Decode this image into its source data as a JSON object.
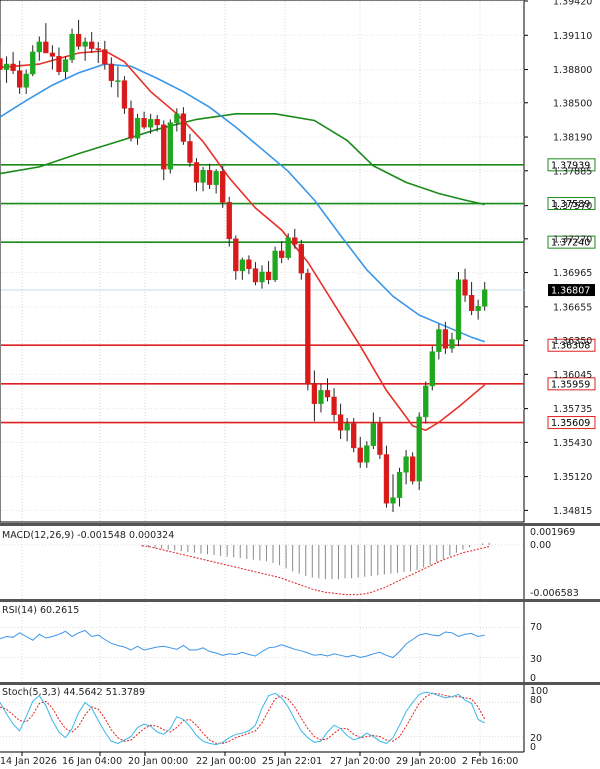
{
  "chart_data": [
    {
      "type": "candlestick",
      "title": "",
      "ylim": [
        1.3471,
        1.3942
      ],
      "y_ticks": [
        "1.39420",
        "1.39110",
        "1.38800",
        "1.38500",
        "1.38190",
        "1.37885",
        "1.37570",
        "1.37270",
        "1.36965",
        "1.36655",
        "1.36350",
        "1.36045",
        "1.35735",
        "1.35430",
        "1.35120",
        "1.34815"
      ],
      "x_ticks": [
        "14 Jan 2026",
        "16 Jan 04:00",
        "20 Jan 00:00",
        "22 Jan 00:00",
        "25 Jan 22:01",
        "27 Jan 20:00",
        "29 Jan 20:00",
        "2 Feb 16:00"
      ],
      "last_price": "1.36807",
      "horizontal_levels": [
        {
          "value": "1.37939",
          "color": "#1a8a1a"
        },
        {
          "value": "1.37589",
          "color": "#1a8a1a"
        },
        {
          "value": "1.37240",
          "color": "#1a8a1a"
        },
        {
          "value": "1.36308",
          "color": "#e02020"
        },
        {
          "value": "1.35959",
          "color": "#e02020"
        },
        {
          "value": "1.35609",
          "color": "#e02020"
        }
      ],
      "colors": {
        "up": "#1fa81f",
        "down": "#d91a1a",
        "ma_fast": "#e8302a",
        "ma_mid": "#3a96e8",
        "ma_slow": "#1a8a1a",
        "last": "#000000"
      },
      "candles": [
        [
          1.389,
          1.3902,
          1.387,
          1.388
        ],
        [
          1.388,
          1.3892,
          1.3868,
          1.3885
        ],
        [
          1.3885,
          1.3896,
          1.3876,
          1.3879
        ],
        [
          1.3879,
          1.3888,
          1.3858,
          1.3864
        ],
        [
          1.3864,
          1.388,
          1.3858,
          1.3876
        ],
        [
          1.3876,
          1.3902,
          1.3874,
          1.3896
        ],
        [
          1.3896,
          1.391,
          1.3888,
          1.3905
        ],
        [
          1.3905,
          1.3922,
          1.3896,
          1.3895
        ],
        [
          1.3895,
          1.3902,
          1.388,
          1.3892
        ],
        [
          1.3892,
          1.39,
          1.3875,
          1.3878
        ],
        [
          1.3878,
          1.3892,
          1.3872,
          1.3889
        ],
        [
          1.3889,
          1.3917,
          1.3886,
          1.3912
        ],
        [
          1.3912,
          1.3925,
          1.3898,
          1.3901
        ],
        [
          1.3901,
          1.3909,
          1.3888,
          1.3905
        ],
        [
          1.3905,
          1.3914,
          1.3895,
          1.3899
        ],
        [
          1.3899,
          1.3905,
          1.3886,
          1.3898
        ],
        [
          1.3898,
          1.3906,
          1.388,
          1.3885
        ],
        [
          1.3885,
          1.3891,
          1.3864,
          1.387
        ],
        [
          1.387,
          1.3883,
          1.3855,
          1.387
        ],
        [
          1.387,
          1.3874,
          1.384,
          1.3845
        ],
        [
          1.3845,
          1.3852,
          1.3815,
          1.3818
        ],
        [
          1.3818,
          1.384,
          1.3812,
          1.3836
        ],
        [
          1.3836,
          1.3842,
          1.3826,
          1.3828
        ],
        [
          1.3828,
          1.384,
          1.3822,
          1.3835
        ],
        [
          1.3835,
          1.3839,
          1.3824,
          1.383
        ],
        [
          1.383,
          1.3834,
          1.378,
          1.379
        ],
        [
          1.379,
          1.3835,
          1.3786,
          1.3832
        ],
        [
          1.3832,
          1.3845,
          1.3824,
          1.384
        ],
        [
          1.384,
          1.3846,
          1.3812,
          1.3815
        ],
        [
          1.3815,
          1.3822,
          1.3792,
          1.3796
        ],
        [
          1.3796,
          1.38,
          1.377,
          1.3778
        ],
        [
          1.3778,
          1.3792,
          1.377,
          1.3789
        ],
        [
          1.3789,
          1.3795,
          1.3772,
          1.3776
        ],
        [
          1.3776,
          1.379,
          1.3768,
          1.3788
        ],
        [
          1.3788,
          1.3793,
          1.3755,
          1.376
        ],
        [
          1.376,
          1.3765,
          1.372,
          1.3727
        ],
        [
          1.3727,
          1.373,
          1.369,
          1.3698
        ],
        [
          1.3698,
          1.371,
          1.369,
          1.3708
        ],
        [
          1.3708,
          1.3712,
          1.3695,
          1.37
        ],
        [
          1.37,
          1.3706,
          1.3685,
          1.3688
        ],
        [
          1.3688,
          1.3703,
          1.3682,
          1.3697
        ],
        [
          1.3697,
          1.3707,
          1.3686,
          1.369
        ],
        [
          1.369,
          1.372,
          1.3688,
          1.3716
        ],
        [
          1.3716,
          1.3725,
          1.3705,
          1.371
        ],
        [
          1.371,
          1.3732,
          1.3708,
          1.3728
        ],
        [
          1.3728,
          1.3736,
          1.3718,
          1.3722
        ],
        [
          1.3722,
          1.3726,
          1.369,
          1.3696
        ],
        [
          1.3696,
          1.37,
          1.359,
          1.3596
        ],
        [
          1.3596,
          1.3608,
          1.3562,
          1.3578
        ],
        [
          1.3578,
          1.3596,
          1.357,
          1.359
        ],
        [
          1.359,
          1.3601,
          1.358,
          1.3584
        ],
        [
          1.3584,
          1.3592,
          1.3562,
          1.3568
        ],
        [
          1.3568,
          1.3578,
          1.3546,
          1.3554
        ],
        [
          1.3554,
          1.3565,
          1.3544,
          1.356
        ],
        [
          1.356,
          1.3565,
          1.3534,
          1.3538
        ],
        [
          1.3538,
          1.3548,
          1.352,
          1.3525
        ],
        [
          1.3525,
          1.3544,
          1.352,
          1.354
        ],
        [
          1.354,
          1.357,
          1.3537,
          1.356
        ],
        [
          1.356,
          1.3566,
          1.3528,
          1.3532
        ],
        [
          1.3532,
          1.354,
          1.3484,
          1.3488
        ],
        [
          1.3488,
          1.3514,
          1.348,
          1.3493
        ],
        [
          1.3493,
          1.352,
          1.3485,
          1.3516
        ],
        [
          1.3516,
          1.3536,
          1.3505,
          1.353
        ],
        [
          1.353,
          1.3534,
          1.3505,
          1.3508
        ],
        [
          1.3508,
          1.357,
          1.35,
          1.3566
        ],
        [
          1.3566,
          1.3598,
          1.356,
          1.3594
        ],
        [
          1.3594,
          1.363,
          1.359,
          1.3625
        ],
        [
          1.3625,
          1.365,
          1.3618,
          1.3645
        ],
        [
          1.3645,
          1.3652,
          1.3623,
          1.3628
        ],
        [
          1.3628,
          1.3642,
          1.3624,
          1.3636
        ],
        [
          1.3636,
          1.3697,
          1.363,
          1.369
        ],
        [
          1.369,
          1.37,
          1.367,
          1.3676
        ],
        [
          1.3676,
          1.3688,
          1.3658,
          1.3662
        ],
        [
          1.3662,
          1.3672,
          1.3654,
          1.3666
        ],
        [
          1.3666,
          1.3688,
          1.3662,
          1.3681
        ]
      ],
      "ma_fast": [
        [
          0,
          1.3882
        ],
        [
          6,
          1.3885
        ],
        [
          12,
          1.3895
        ],
        [
          16,
          1.3897
        ],
        [
          19,
          1.3887
        ],
        [
          23,
          1.386
        ],
        [
          27,
          1.384
        ],
        [
          31,
          1.3815
        ],
        [
          35,
          1.3782
        ],
        [
          39,
          1.3755
        ],
        [
          43,
          1.3735
        ],
        [
          47,
          1.3706
        ],
        [
          51,
          1.3668
        ],
        [
          55,
          1.363
        ],
        [
          59,
          1.359
        ],
        [
          62,
          1.3566
        ],
        [
          63,
          1.3558
        ],
        [
          65,
          1.3554
        ],
        [
          67,
          1.3561
        ],
        [
          70,
          1.3575
        ],
        [
          74,
          1.3595
        ]
      ],
      "ma_mid": [
        [
          0,
          1.3837
        ],
        [
          4,
          1.3852
        ],
        [
          8,
          1.3866
        ],
        [
          12,
          1.3877
        ],
        [
          16,
          1.3885
        ],
        [
          20,
          1.3883
        ],
        [
          24,
          1.3872
        ],
        [
          28,
          1.386
        ],
        [
          32,
          1.3846
        ],
        [
          36,
          1.3828
        ],
        [
          40,
          1.3808
        ],
        [
          44,
          1.3788
        ],
        [
          48,
          1.3762
        ],
        [
          52,
          1.373
        ],
        [
          56,
          1.3699
        ],
        [
          60,
          1.3675
        ],
        [
          64,
          1.3658
        ],
        [
          68,
          1.3648
        ],
        [
          72,
          1.3638
        ],
        [
          74,
          1.3634
        ]
      ],
      "ma_slow": [
        [
          0,
          1.3786
        ],
        [
          6,
          1.3792
        ],
        [
          12,
          1.3804
        ],
        [
          18,
          1.3815
        ],
        [
          24,
          1.3826
        ],
        [
          30,
          1.3835
        ],
        [
          36,
          1.384
        ],
        [
          42,
          1.384
        ],
        [
          48,
          1.3834
        ],
        [
          53,
          1.3816
        ],
        [
          57,
          1.3793
        ],
        [
          62,
          1.3778
        ],
        [
          67,
          1.3768
        ],
        [
          71,
          1.3762
        ],
        [
          74,
          1.3758
        ]
      ]
    },
    {
      "type": "histogram",
      "title": "MACD(12,26,9) -0.001548 0.000324",
      "y_ticks": [
        "0.001969",
        "0.00",
        "-0.006583"
      ],
      "histogram": [
        -0.0002,
        -0.0003,
        -0.0004,
        -0.0005,
        -0.0006,
        -0.0007,
        -0.0008,
        -0.0009,
        -0.001,
        -0.0011,
        -0.0012,
        -0.0013,
        -0.0014,
        -0.0015,
        -0.0016,
        -0.0017,
        -0.0018,
        -0.0019,
        -0.002,
        -0.0021,
        -0.0023,
        -0.0026,
        -0.003,
        -0.0034,
        -0.0037,
        -0.004,
        -0.0042,
        -0.0043,
        -0.0044,
        -0.0044,
        -0.0044,
        -0.0043,
        -0.0043,
        -0.0042,
        -0.0041,
        -0.004,
        -0.0039,
        -0.0038,
        -0.0037,
        -0.0036,
        -0.0035,
        -0.0034,
        -0.0032,
        -0.0029,
        -0.0026,
        -0.0022,
        -0.0018,
        -0.0014,
        -0.001,
        -0.0006,
        -0.0003,
        0.0,
        0.0002,
        0.0003
      ],
      "signal": [
        -0.0001,
        -0.0002,
        -0.0004,
        -0.0006,
        -0.0008,
        -0.001,
        -0.0012,
        -0.0014,
        -0.0016,
        -0.0018,
        -0.002,
        -0.0022,
        -0.0024,
        -0.0026,
        -0.0028,
        -0.003,
        -0.0032,
        -0.0034,
        -0.0036,
        -0.0038,
        -0.004,
        -0.0042,
        -0.0045,
        -0.0048,
        -0.0051,
        -0.0054,
        -0.0057,
        -0.0059,
        -0.0061,
        -0.0062,
        -0.0063,
        -0.0064,
        -0.0064,
        -0.0064,
        -0.0063,
        -0.0061,
        -0.0058,
        -0.0055,
        -0.0051,
        -0.0047,
        -0.0043,
        -0.0039,
        -0.0035,
        -0.0031,
        -0.0027,
        -0.0023,
        -0.0019,
        -0.0016,
        -0.0013,
        -0.001,
        -0.0008,
        -0.0006,
        -0.0004,
        -0.0002
      ],
      "colors": {
        "bars": "#8a8a8a",
        "signal": "#e02020"
      }
    },
    {
      "type": "line",
      "title": "RSI(14) 60.2615",
      "y_ticks": [
        "70",
        "30",
        "0"
      ],
      "ylim": [
        0,
        100
      ],
      "values": [
        55,
        58,
        57,
        63,
        58,
        53,
        61,
        56,
        58,
        61,
        65,
        58,
        63,
        66,
        58,
        60,
        54,
        49,
        46,
        44,
        40,
        45,
        40,
        42,
        44,
        45,
        43,
        41,
        46,
        40,
        40,
        43,
        38,
        36,
        33,
        35,
        34,
        37,
        34,
        32,
        38,
        43,
        44,
        47,
        44,
        41,
        39,
        36,
        33,
        34,
        32,
        35,
        33,
        31,
        33,
        30,
        32,
        35,
        37,
        33,
        30,
        38,
        48,
        54,
        60,
        62,
        60,
        59,
        64,
        63,
        58,
        61,
        62,
        58,
        60
      ],
      "colors": {
        "line": "#3a96e8"
      }
    },
    {
      "type": "line",
      "title": "Stoch(5,3,3) 44.5642 51.3789",
      "y_ticks": [
        "100",
        "80",
        "20",
        "0"
      ],
      "ylim": [
        0,
        100
      ],
      "k": [
        80,
        60,
        42,
        30,
        55,
        82,
        92,
        74,
        48,
        28,
        18,
        34,
        62,
        80,
        70,
        48,
        28,
        12,
        8,
        14,
        20,
        36,
        42,
        38,
        28,
        24,
        34,
        55,
        50,
        38,
        22,
        12,
        8,
        6,
        10,
        18,
        24,
        26,
        30,
        40,
        70,
        92,
        96,
        88,
        72,
        50,
        30,
        18,
        10,
        12,
        28,
        40,
        34,
        22,
        14,
        18,
        26,
        20,
        12,
        8,
        18,
        40,
        64,
        80,
        94,
        98,
        96,
        92,
        88,
        90,
        94,
        84,
        78,
        50,
        44
      ],
      "d": [
        72,
        68,
        58,
        48,
        46,
        58,
        78,
        82,
        70,
        50,
        34,
        28,
        38,
        58,
        72,
        68,
        52,
        32,
        18,
        12,
        14,
        24,
        34,
        40,
        38,
        32,
        28,
        36,
        48,
        50,
        40,
        26,
        14,
        8,
        8,
        12,
        18,
        22,
        26,
        30,
        44,
        66,
        86,
        92,
        86,
        72,
        52,
        34,
        20,
        14,
        16,
        26,
        34,
        34,
        24,
        18,
        20,
        22,
        20,
        14,
        12,
        20,
        38,
        58,
        78,
        90,
        96,
        95,
        92,
        90,
        90,
        88,
        86,
        72,
        51
      ],
      "colors": {
        "k": "#3ab8e8",
        "d": "#e02020"
      }
    }
  ]
}
